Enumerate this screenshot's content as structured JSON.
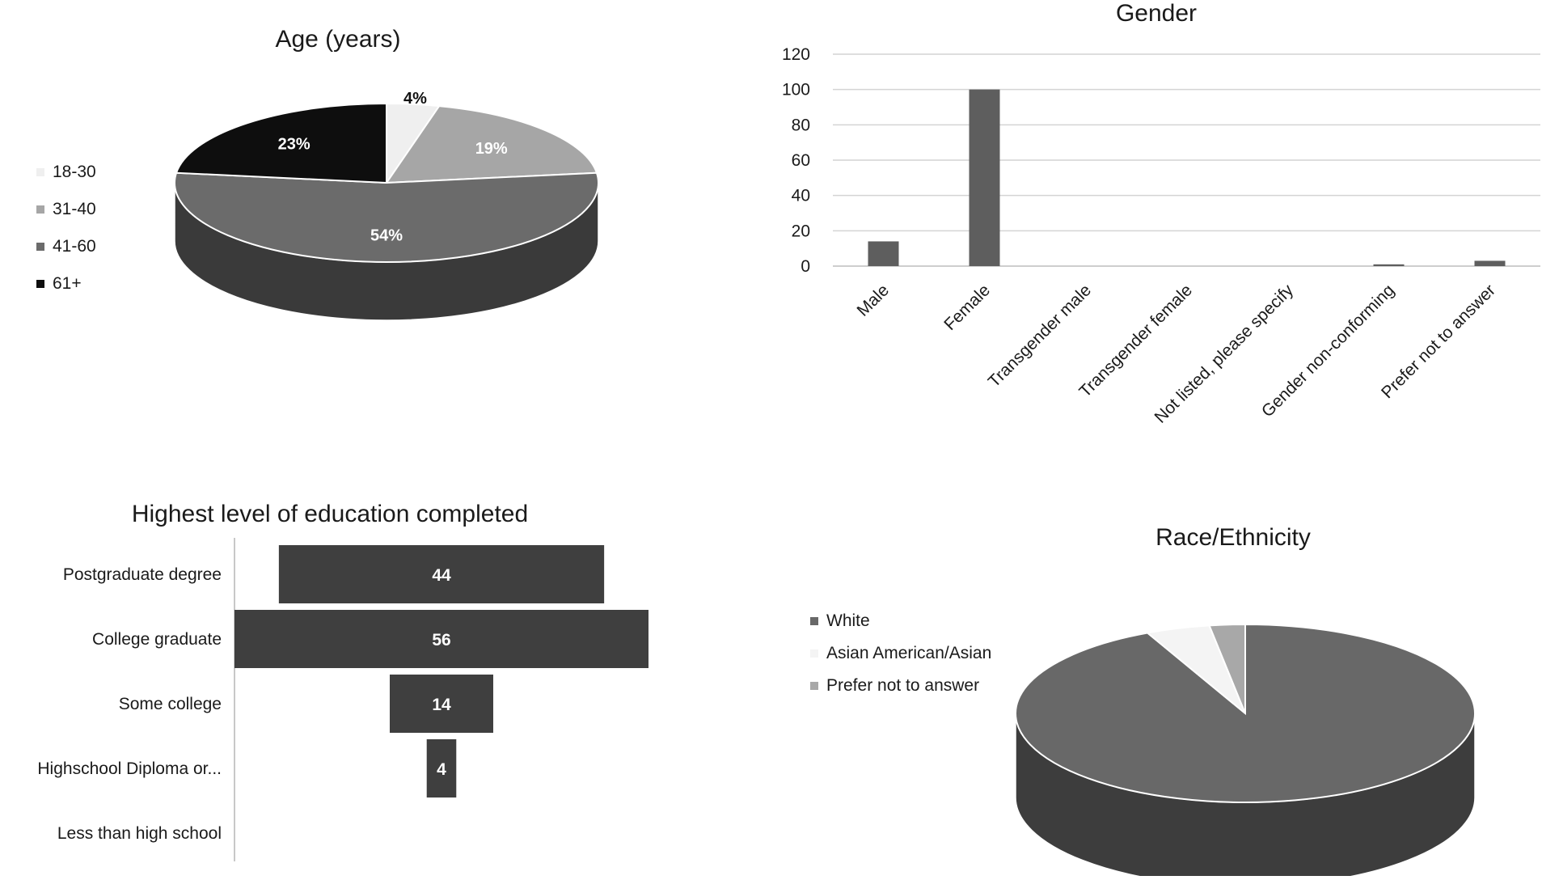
{
  "chart_data": [
    {
      "type": "pie",
      "title": "Age (years)",
      "categories": [
        "18-30",
        "31-40",
        "41-60",
        "61+"
      ],
      "values": [
        4,
        19,
        54,
        23
      ],
      "labels": [
        "4%",
        "19%",
        "54%",
        "23%"
      ],
      "colors": [
        "#efefef",
        "#a6a6a6",
        "#6b6b6b",
        "#0e0e0e"
      ],
      "label_colors": [
        "#111111",
        "#ffffff",
        "#ffffff",
        "#ffffff"
      ],
      "legend": "left",
      "style": "3d"
    },
    {
      "type": "bar",
      "title": "Gender",
      "categories": [
        "Male",
        "Female",
        "Transgender male",
        "Transgender female",
        "Not listed, please specify",
        "Gender non-conforming",
        "Prefer not to answer"
      ],
      "values": [
        14,
        100,
        0,
        0,
        0,
        1,
        3
      ],
      "ylim": [
        0,
        120
      ],
      "yticks": [
        "0",
        "20",
        "40",
        "60",
        "80",
        "100",
        "120"
      ],
      "grid": true,
      "bar_color": "#5e5e5e"
    },
    {
      "type": "bar",
      "orientation": "horizontal-funnel",
      "title": "Highest level of education completed",
      "categories": [
        "Postgraduate degree",
        "College graduate",
        "Some college",
        "Highschool Diploma or...",
        "Less than high school"
      ],
      "values": [
        44,
        56,
        14,
        4,
        0
      ],
      "labels": [
        "44",
        "56",
        "14",
        "4",
        ""
      ],
      "bar_color": "#3f3f3f"
    },
    {
      "type": "pie",
      "title": "Race/Ethnicity",
      "categories": [
        "White",
        "Asian American/Asian",
        "Prefer not to answer"
      ],
      "values": [
        93,
        4.5,
        2.5
      ],
      "colors": [
        "#686868",
        "#f4f4f4",
        "#a8a8a8"
      ],
      "legend": "left",
      "style": "3d"
    }
  ]
}
